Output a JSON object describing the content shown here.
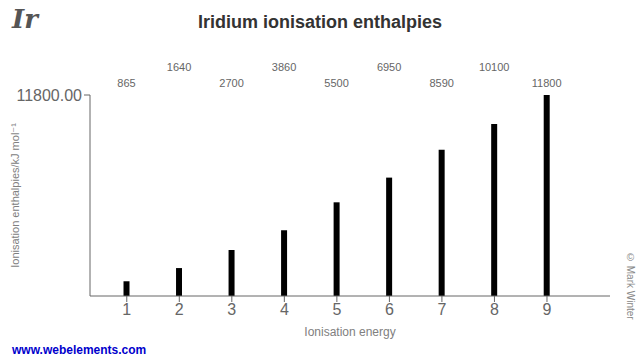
{
  "chart_data": {
    "type": "bar",
    "title": "Iridium ionisation enthalpies",
    "xlabel": "Ionisation energy",
    "ylabel": "Ionisation enthalpies/kJ mol⁻¹",
    "annotations": [
      "Ir",
      "www.webelements.com",
      "© Mark Winter"
    ],
    "x": [
      1,
      2,
      3,
      4,
      5,
      6,
      7,
      8,
      9
    ],
    "values": [
      865,
      1640,
      2700,
      3860,
      5500,
      6950,
      8590,
      10100,
      11800
    ],
    "color": "#000000",
    "xlim": [
      0.3,
      10.2
    ],
    "xticks": [
      1,
      2,
      3,
      4,
      5,
      6,
      7,
      8,
      9
    ],
    "ylim": [
      0,
      11800
    ],
    "yticks": [
      {
        "value": 11800,
        "label": "11800.00"
      }
    ],
    "data_labels": true
  }
}
